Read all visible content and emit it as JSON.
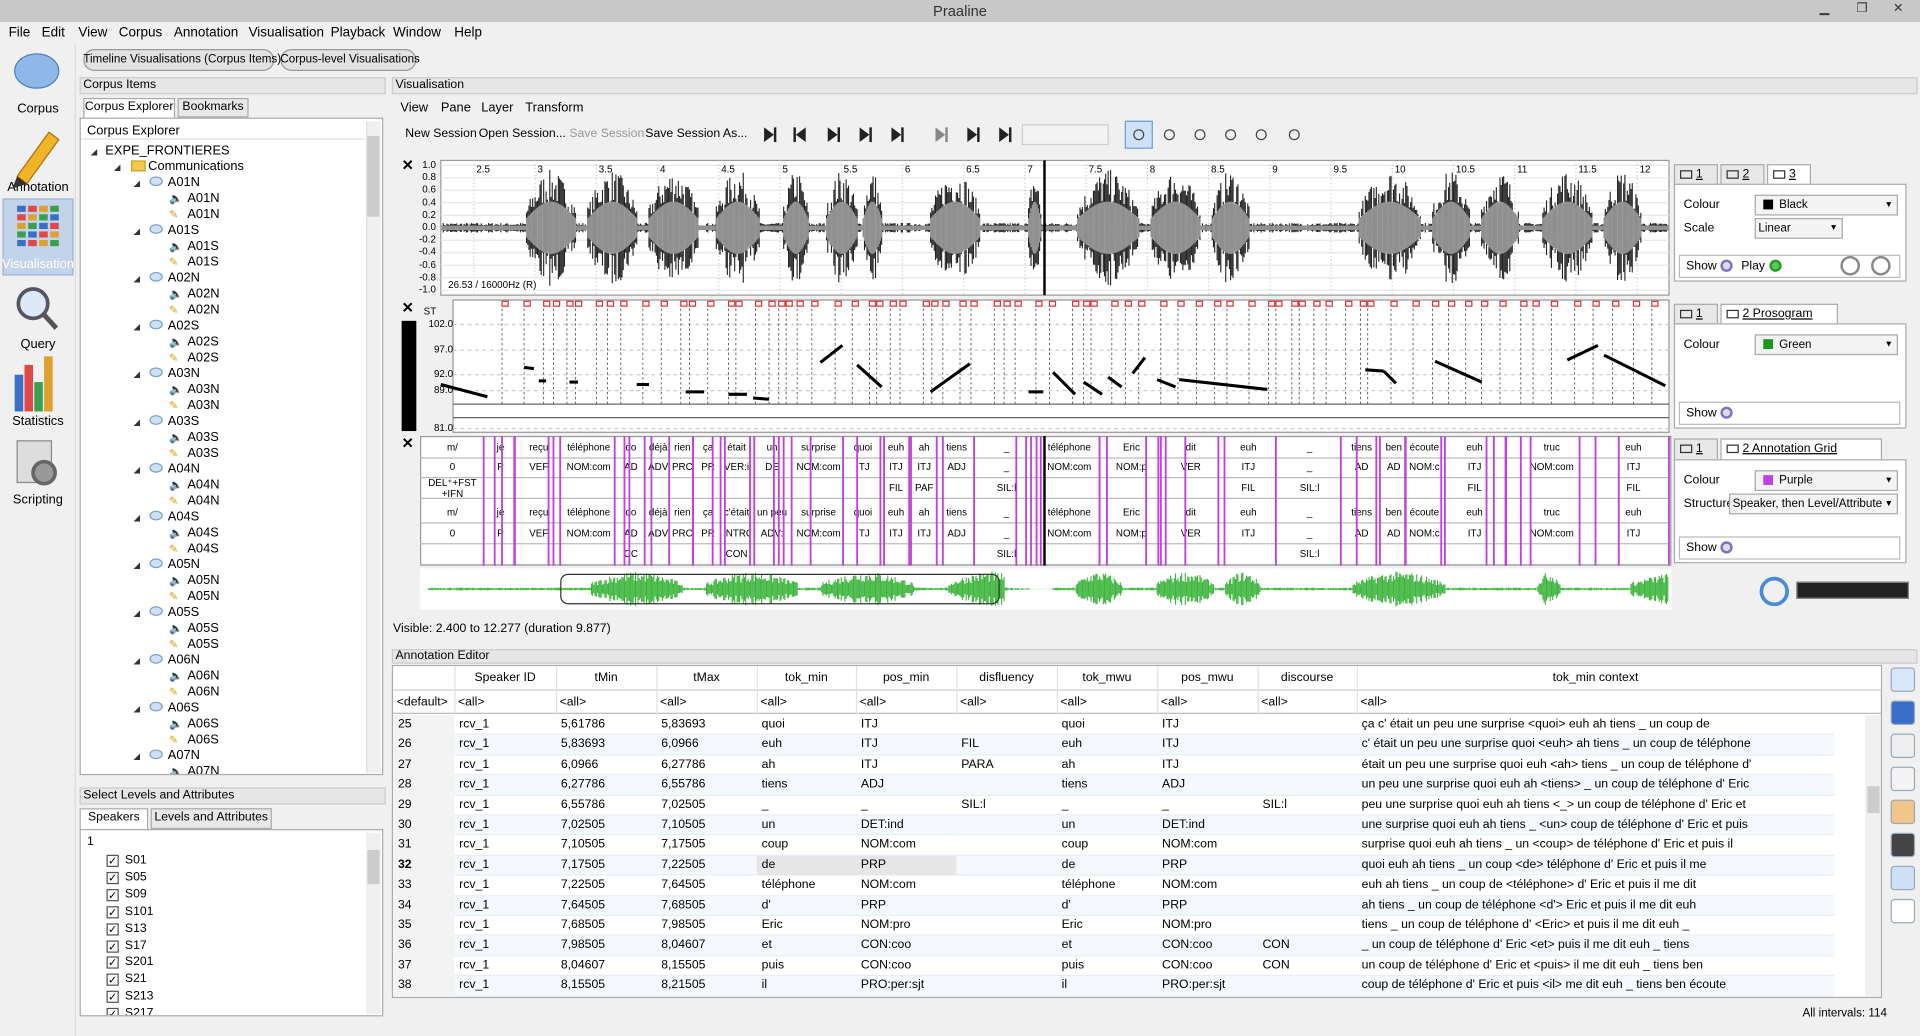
{
  "window": {
    "title": "Praaline"
  },
  "menu": [
    "File",
    "Edit",
    "View",
    "Corpus",
    "Annotation",
    "Visualisation",
    "Playback",
    "Window",
    "Help"
  ],
  "sidebar": [
    "Corpus",
    "Annotation",
    "Visualisation",
    "Query",
    "Statistics",
    "Scripting"
  ],
  "mode_tabs": [
    "Timeline Visualisations (Corpus Items)",
    "Corpus-level Visualisations"
  ],
  "corpus_items": {
    "title": "Corpus Items",
    "tabs": [
      "Corpus Explorer",
      "Bookmarks"
    ],
    "header": "Corpus Explorer",
    "root": "EXPE_FRONTIERES",
    "folder": "Communications",
    "items": [
      {
        "name": "A01N",
        "children": [
          "A01N",
          "A01N"
        ]
      },
      {
        "name": "A01S",
        "children": [
          "A01S",
          "A01S"
        ]
      },
      {
        "name": "A02N",
        "children": [
          "A02N",
          "A02N"
        ]
      },
      {
        "name": "A02S",
        "children": [
          "A02S",
          "A02S"
        ]
      },
      {
        "name": "A03N",
        "children": [
          "A03N",
          "A03N"
        ]
      },
      {
        "name": "A03S",
        "children": [
          "A03S",
          "A03S"
        ]
      },
      {
        "name": "A04N",
        "children": [
          "A04N",
          "A04N"
        ]
      },
      {
        "name": "A04S",
        "children": [
          "A04S",
          "A04S"
        ]
      },
      {
        "name": "A05N",
        "children": [
          "A05N",
          "A05N"
        ]
      },
      {
        "name": "A05S",
        "children": [
          "A05S",
          "A05S"
        ]
      },
      {
        "name": "A06N",
        "children": [
          "A06N",
          "A06N"
        ]
      },
      {
        "name": "A06S",
        "children": [
          "A06S",
          "A06S"
        ]
      },
      {
        "name": "A07N",
        "children": [
          "A07N"
        ]
      }
    ]
  },
  "levels": {
    "title": "Select Levels and Attributes",
    "tabs": [
      "Speakers",
      "Levels and Attributes"
    ],
    "filter": "1",
    "speakers": [
      "S01",
      "S05",
      "S09",
      "S101",
      "S13",
      "S17",
      "S201",
      "S21",
      "S213",
      "S217"
    ]
  },
  "visualisation": {
    "title": "Visualisation",
    "menu": [
      "View",
      "Pane",
      "Layer",
      "Transform"
    ],
    "session": [
      "New Session",
      "Open Session...",
      "Save Session",
      "Save Session As..."
    ],
    "time_ticks": [
      "2.5",
      "3",
      "3.5",
      "4",
      "4.5",
      "5",
      "5.5",
      "6",
      "6.5",
      "7",
      "7.5",
      "8",
      "8.5",
      "9",
      "9.5",
      "10",
      "10.5",
      "11",
      "11.5",
      "12"
    ],
    "amp_ticks": [
      "1.0",
      "0.8",
      "0.6",
      "0.4",
      "0.2",
      "0.0",
      "-0.2",
      "-0.4",
      "-0.6",
      "-0.8",
      "-1.0"
    ],
    "sample_info": "26.53 / 16000Hz (R)",
    "pitch_unit": "ST",
    "pitch_ticks": [
      "102.0",
      "97.0",
      "92.0",
      "89.0",
      "81.0"
    ],
    "grid": {
      "rows": [
        [
          "m/",
          "je",
          "reçu",
          "téléphone",
          "do",
          "déjà",
          "rien",
          "ça",
          "était",
          "un",
          "surprise",
          "quoi",
          "euh",
          "ah",
          "tiens",
          "_",
          "téléphone",
          "Eric",
          "dit",
          "euh",
          "_",
          "tiens",
          "ben",
          "écoute",
          "euh",
          "truc",
          "euh"
        ],
        [
          "0",
          "P",
          "VEF",
          "NOM:com",
          "AD",
          "ADV",
          "PRC",
          "PR",
          "VER:i",
          "DE",
          "NOM:com",
          "ITJ",
          "ITJ",
          "ITJ",
          "ADJ",
          "_",
          "NOM:com",
          "NOM:p",
          "VER",
          "ITJ",
          "_",
          "AD",
          "AD",
          "NOM:c",
          "ITJ",
          "NOM:com",
          "ITJ"
        ],
        [
          "DEL⁺+FST +IFN",
          null,
          null,
          null,
          null,
          null,
          null,
          null,
          null,
          null,
          null,
          null,
          "FIL",
          "PAF",
          null,
          "SIL:l",
          null,
          null,
          null,
          "FIL",
          "SIL:l",
          null,
          null,
          null,
          "FIL",
          null,
          "FIL"
        ],
        [
          "m/",
          "je",
          "reçu",
          "téléphone",
          "do",
          "déjà",
          "rien",
          "ça",
          "c'était",
          "un peu",
          "surprise",
          "quoi",
          "euh",
          "ah",
          "tiens",
          "_",
          "téléphone",
          "Eric",
          "dit",
          "euh",
          "_",
          "tiens",
          "ben",
          "écoute",
          "euh",
          "truc",
          "euh"
        ],
        [
          "0",
          "P",
          "VEF",
          "NOM:com",
          "AD",
          "ADV",
          "PRC",
          "PR",
          "INTROD",
          "ADV:",
          "NOM:com",
          "ITJ",
          "ITJ",
          "ITJ",
          "ADJ",
          "_",
          "NOM:com",
          "NOM:p",
          "VER",
          "ITJ",
          "_",
          "AD",
          "AD",
          "NOM:c",
          "ITJ",
          "NOM:com",
          "ITJ"
        ],
        [
          null,
          null,
          null,
          null,
          "CC",
          null,
          null,
          null,
          "CON",
          null,
          null,
          null,
          null,
          null,
          null,
          "SIL:l",
          null,
          null,
          null,
          null,
          "SIL:l",
          null,
          null,
          null,
          null,
          null,
          null
        ]
      ]
    },
    "visible": "Visible: 2.400 to 12.277 (duration 9.877)"
  },
  "properties": [
    {
      "tabs": [
        "1",
        "2",
        "3"
      ],
      "rows": [
        [
          "Colour",
          "Black"
        ],
        [
          "Scale",
          "Linear"
        ]
      ],
      "show": "Show",
      "play": "Play"
    },
    {
      "tabs": [
        "1",
        "2 Prosogram"
      ],
      "rows": [
        [
          "Colour",
          "Green"
        ]
      ],
      "show": "Show"
    },
    {
      "tabs": [
        "1",
        "2 Annotation Grid"
      ],
      "rows": [
        [
          "Colour",
          "Purple"
        ],
        [
          "Structure",
          "Speaker, then Level/Attribute"
        ]
      ],
      "show": "Show"
    }
  ],
  "annotation_editor": {
    "title": "Annotation Editor",
    "columns": [
      "Speaker ID",
      "tMin",
      "tMax",
      "tok_min",
      "pos_min",
      "disfluency",
      "tok_mwu",
      "pos_mwu",
      "discourse",
      "tok_min context"
    ],
    "filters": [
      "<default>",
      "<all>",
      "<all>",
      "<all>",
      "<all>",
      "<all>",
      "<all>",
      "<all>",
      "<all>",
      "<all>",
      "<all>"
    ],
    "rows": [
      [
        "25",
        "rcv_1",
        "5,61786",
        "5,83693",
        "quoi",
        "ITJ",
        null,
        "quoi",
        "ITJ",
        null,
        "ça c' était un peu une surprise <quoi> euh ah tiens _ un coup de"
      ],
      [
        "26",
        "rcv_1",
        "5,83693",
        "6,0966",
        "euh",
        "ITJ",
        "FIL",
        "euh",
        "ITJ",
        null,
        "c' était un peu une surprise quoi <euh> ah tiens _ un coup de téléphone"
      ],
      [
        "27",
        "rcv_1",
        "6,0966",
        "6,27786",
        "ah",
        "ITJ",
        "PARA",
        "ah",
        "ITJ",
        null,
        "était un peu une surprise quoi euh <ah> tiens _ un coup de téléphone d'"
      ],
      [
        "28",
        "rcv_1",
        "6,27786",
        "6,55786",
        "tiens",
        "ADJ",
        null,
        "tiens",
        "ADJ",
        null,
        "un peu une surprise quoi euh ah <tiens> _ un coup de téléphone d' Eric"
      ],
      [
        "29",
        "rcv_1",
        "6,55786",
        "7,02505",
        "_",
        "_",
        "SIL:l",
        "_",
        "_",
        "SIL:l",
        "peu une surprise quoi euh ah tiens <_> un coup de téléphone d' Eric et"
      ],
      [
        "30",
        "rcv_1",
        "7,02505",
        "7,10505",
        "un",
        "DET:ind",
        null,
        "un",
        "DET:ind",
        null,
        "une surprise quoi euh ah tiens _ <un> coup de téléphone d' Eric et puis"
      ],
      [
        "31",
        "rcv_1",
        "7,10505",
        "7,17505",
        "coup",
        "NOM:com",
        null,
        "coup",
        "NOM:com",
        null,
        "surprise quoi euh ah tiens _ un <coup> de téléphone d' Eric et puis il"
      ],
      [
        "32",
        "rcv_1",
        "7,17505",
        "7,22505",
        "de",
        "PRP",
        null,
        "de",
        "PRP",
        null,
        "quoi euh ah tiens _ un coup <de> téléphone d' Eric et puis il me"
      ],
      [
        "33",
        "rcv_1",
        "7,22505",
        "7,64505",
        "téléphone",
        "NOM:com",
        null,
        "téléphone",
        "NOM:com",
        null,
        "euh ah tiens _ un coup de <téléphone> d' Eric et puis il me dit"
      ],
      [
        "34",
        "rcv_1",
        "7,64505",
        "7,68505",
        "d'",
        "PRP",
        null,
        "d'",
        "PRP",
        null,
        "ah tiens _ un coup de téléphone <d'> Eric et puis il me dit euh"
      ],
      [
        "35",
        "rcv_1",
        "7,68505",
        "7,98505",
        "Eric",
        "NOM:pro",
        null,
        "Eric",
        "NOM:pro",
        null,
        "tiens _ un coup de téléphone d' <Eric> et puis il me dit euh _"
      ],
      [
        "36",
        "rcv_1",
        "7,98505",
        "8,04607",
        "et",
        "CON:coo",
        null,
        "et",
        "CON:coo",
        "CON",
        "_ un coup de téléphone d' Eric <et> puis il me dit euh _ tiens"
      ],
      [
        "37",
        "rcv_1",
        "8,04607",
        "8,15505",
        "puis",
        "CON:coo",
        null,
        "puis",
        "CON:coo",
        "CON",
        "un coup de téléphone d' Eric et <puis> il me dit euh _ tiens ben"
      ],
      [
        "38",
        "rcv_1",
        "8,15505",
        "8,21505",
        "il",
        "PRO:per:sjt",
        null,
        "il",
        "PRO:per:sjt",
        null,
        "coup de téléphone d' Eric et puis <il> me dit euh _ tiens ben écoute"
      ]
    ],
    "status": "All intervals: 114"
  }
}
